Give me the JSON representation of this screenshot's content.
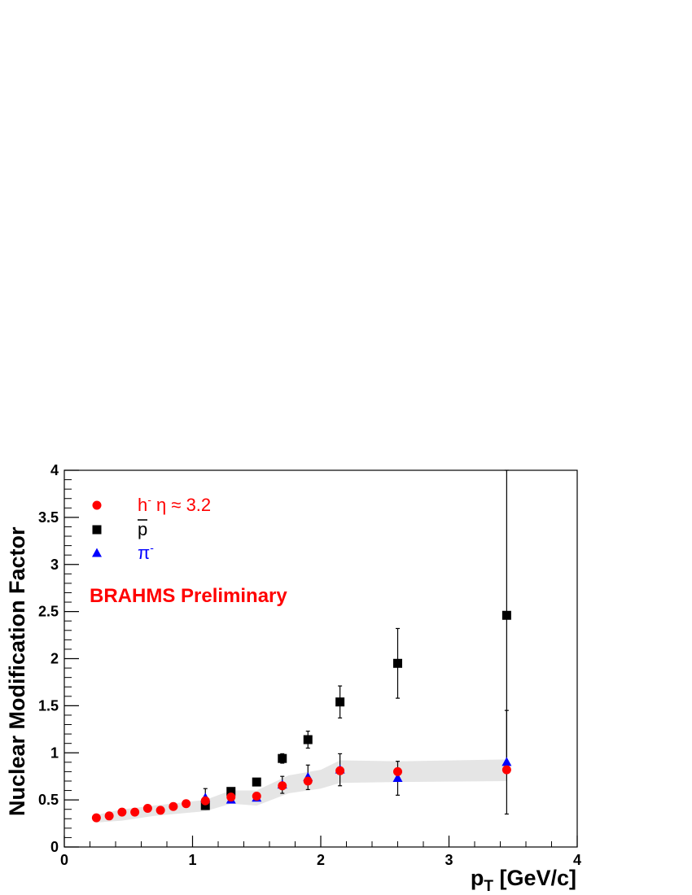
{
  "chart_data": {
    "type": "scatter",
    "title": "",
    "xlabel_main": "p",
    "xlabel_sub": "T",
    "xlabel_unit": " [GeV/c]",
    "ylabel": "Nuclear Modification Factor",
    "xlim": [
      0,
      4
    ],
    "ylim": [
      0,
      4
    ],
    "x_ticks": [
      "0",
      "1",
      "2",
      "3",
      "4"
    ],
    "y_ticks": [
      "0",
      "0.5",
      "1",
      "1.5",
      "2",
      "2.5",
      "3",
      "3.5",
      "4"
    ],
    "grid": false,
    "legend_position": "top-left",
    "annotation": "BRAHMS Preliminary",
    "band": {
      "upper": [
        [
          0.25,
          0.34
        ],
        [
          0.45,
          0.4
        ],
        [
          0.7,
          0.44
        ],
        [
          1.1,
          0.5
        ],
        [
          1.3,
          0.6
        ],
        [
          1.5,
          0.6
        ],
        [
          1.75,
          0.76
        ],
        [
          2.0,
          0.82
        ],
        [
          2.15,
          0.92
        ],
        [
          2.6,
          0.91
        ],
        [
          3.45,
          0.93
        ]
      ],
      "lower": [
        [
          3.45,
          0.7
        ],
        [
          2.6,
          0.69
        ],
        [
          2.15,
          0.68
        ],
        [
          2.0,
          0.62
        ],
        [
          1.75,
          0.57
        ],
        [
          1.5,
          0.44
        ],
        [
          1.3,
          0.46
        ],
        [
          1.1,
          0.38
        ],
        [
          0.7,
          0.33
        ],
        [
          0.45,
          0.28
        ],
        [
          0.25,
          0.26
        ]
      ],
      "color": "#e5e5e5"
    },
    "series": [
      {
        "name": "h",
        "name_sup": "-",
        "name_extra": " η ≈ 3.2",
        "marker": "circle",
        "color": "#ff0000",
        "points": [
          {
            "x": 0.25,
            "y": 0.31
          },
          {
            "x": 0.35,
            "y": 0.33
          },
          {
            "x": 0.45,
            "y": 0.37
          },
          {
            "x": 0.55,
            "y": 0.37
          },
          {
            "x": 0.65,
            "y": 0.41
          },
          {
            "x": 0.75,
            "y": 0.39
          },
          {
            "x": 0.85,
            "y": 0.43
          },
          {
            "x": 0.95,
            "y": 0.46
          },
          {
            "x": 1.1,
            "y": 0.49
          },
          {
            "x": 1.3,
            "y": 0.53
          },
          {
            "x": 1.5,
            "y": 0.54
          },
          {
            "x": 1.7,
            "y": 0.65
          },
          {
            "x": 1.9,
            "y": 0.7
          },
          {
            "x": 2.15,
            "y": 0.81
          },
          {
            "x": 2.6,
            "y": 0.8
          },
          {
            "x": 3.45,
            "y": 0.82
          }
        ]
      },
      {
        "name": "p",
        "name_overline": true,
        "marker": "square",
        "color": "#000000",
        "points": [
          {
            "x": 1.1,
            "y": 0.44,
            "err": 0.03
          },
          {
            "x": 1.3,
            "y": 0.59,
            "err": 0.03
          },
          {
            "x": 1.5,
            "y": 0.69,
            "err": 0.03
          },
          {
            "x": 1.7,
            "y": 0.94,
            "err": 0.05
          },
          {
            "x": 1.9,
            "y": 1.14,
            "err": 0.09
          },
          {
            "x": 2.15,
            "y": 1.54,
            "err": 0.17
          },
          {
            "x": 2.6,
            "y": 1.95,
            "err": 0.37
          },
          {
            "x": 3.45,
            "y": 2.46,
            "err": 1.6
          }
        ]
      },
      {
        "name": "π",
        "name_sup": "-",
        "marker": "triangle",
        "color": "#0000ff",
        "points": [
          {
            "x": 1.1,
            "y": 0.52,
            "err": 0.1
          },
          {
            "x": 1.3,
            "y": 0.5,
            "err": 0.03
          },
          {
            "x": 1.5,
            "y": 0.52,
            "err": 0.03
          },
          {
            "x": 1.7,
            "y": 0.66,
            "err": 0.09
          },
          {
            "x": 1.9,
            "y": 0.74,
            "err": 0.13
          },
          {
            "x": 2.15,
            "y": 0.82,
            "err": 0.17
          },
          {
            "x": 2.6,
            "y": 0.73,
            "err": 0.18
          },
          {
            "x": 3.45,
            "y": 0.9,
            "err": 0.55
          }
        ]
      }
    ]
  }
}
